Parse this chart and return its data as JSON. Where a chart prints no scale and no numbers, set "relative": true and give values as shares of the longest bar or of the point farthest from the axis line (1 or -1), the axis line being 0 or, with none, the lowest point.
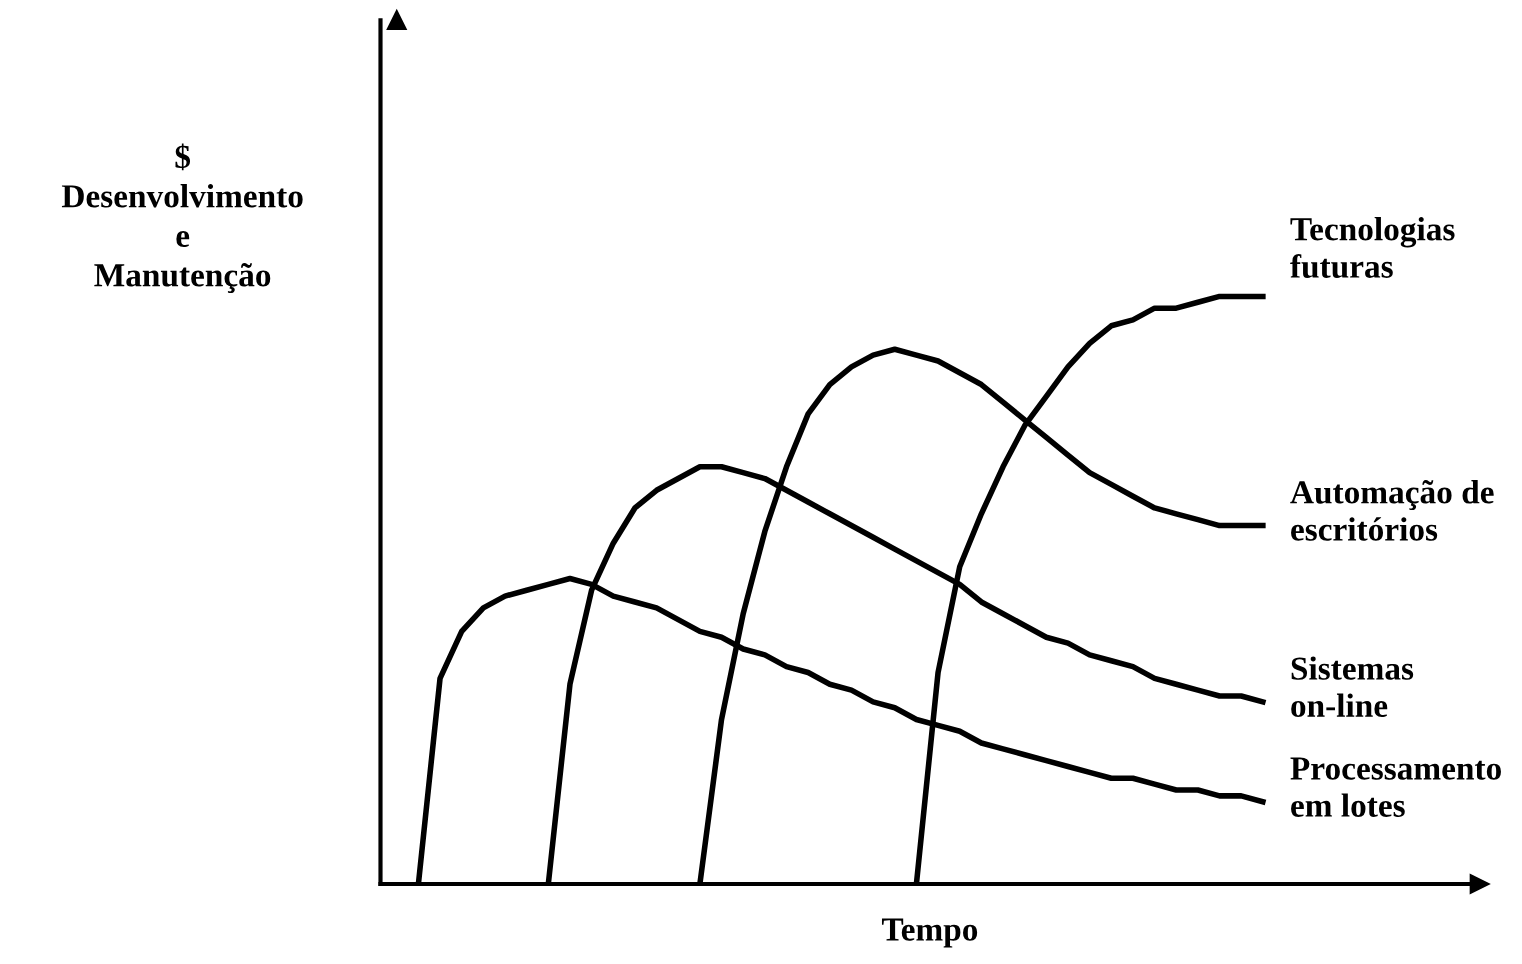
{
  "chart_data": {
    "type": "line",
    "relative": true,
    "xlabel": "Tempo",
    "ylabel": "$\nDesenvolvimento\ne\nManutenção",
    "legend": false,
    "marker": "none",
    "line_style": "solid",
    "categories": [
      null,
      null,
      null,
      null,
      null,
      null,
      null,
      null,
      null,
      null,
      null,
      null,
      null,
      null,
      null,
      null,
      null,
      null,
      null,
      null,
      null,
      null,
      null,
      null,
      null,
      null,
      null,
      null,
      null,
      null,
      null,
      null,
      null,
      null,
      null,
      null,
      null,
      null,
      null,
      null,
      null
    ],
    "series": [
      {
        "name": "Processamento\nem lotes",
        "color": "#000000",
        "values": [
          null,
          0,
          0.35,
          0.43,
          0.47,
          0.49,
          0.5,
          0.51,
          0.52,
          0.51,
          0.49,
          0.48,
          0.47,
          0.45,
          0.43,
          0.42,
          0.4,
          0.39,
          0.37,
          0.36,
          0.34,
          0.33,
          0.31,
          0.3,
          0.28,
          0.27,
          0.26,
          0.24,
          0.23,
          0.22,
          0.21,
          0.2,
          0.19,
          0.18,
          0.18,
          0.17,
          0.16,
          0.16,
          0.15,
          0.15,
          0.14
        ]
      },
      {
        "name": "Sistemas\non-line",
        "color": "#000000",
        "values": [
          null,
          null,
          null,
          null,
          null,
          null,
          null,
          0,
          0.34,
          0.5,
          0.58,
          0.64,
          0.67,
          0.69,
          0.71,
          0.71,
          0.7,
          0.69,
          0.67,
          0.65,
          0.63,
          0.61,
          0.59,
          0.57,
          0.55,
          0.53,
          0.51,
          0.48,
          0.46,
          0.44,
          0.42,
          0.41,
          0.39,
          0.38,
          0.37,
          0.35,
          0.34,
          0.33,
          0.32,
          0.32,
          0.31
        ]
      },
      {
        "name": "Automação de\nescritórios",
        "color": "#000000",
        "values": [
          null,
          null,
          null,
          null,
          null,
          null,
          null,
          null,
          null,
          null,
          null,
          null,
          null,
          null,
          0,
          0.28,
          0.46,
          0.6,
          0.71,
          0.8,
          0.85,
          0.88,
          0.9,
          0.91,
          0.9,
          0.89,
          0.87,
          0.85,
          0.82,
          0.79,
          0.76,
          0.73,
          0.7,
          0.68,
          0.66,
          0.64,
          0.63,
          0.62,
          0.61,
          0.61,
          0.61
        ]
      },
      {
        "name": "Tecnologias\nfuturas",
        "color": "#000000",
        "values": [
          null,
          null,
          null,
          null,
          null,
          null,
          null,
          null,
          null,
          null,
          null,
          null,
          null,
          null,
          null,
          null,
          null,
          null,
          null,
          null,
          null,
          null,
          null,
          null,
          0,
          0.36,
          0.54,
          0.63,
          0.71,
          0.78,
          0.83,
          0.88,
          0.92,
          0.95,
          0.96,
          0.98,
          0.98,
          0.99,
          1.0,
          1.0,
          1.0
        ]
      }
    ]
  }
}
